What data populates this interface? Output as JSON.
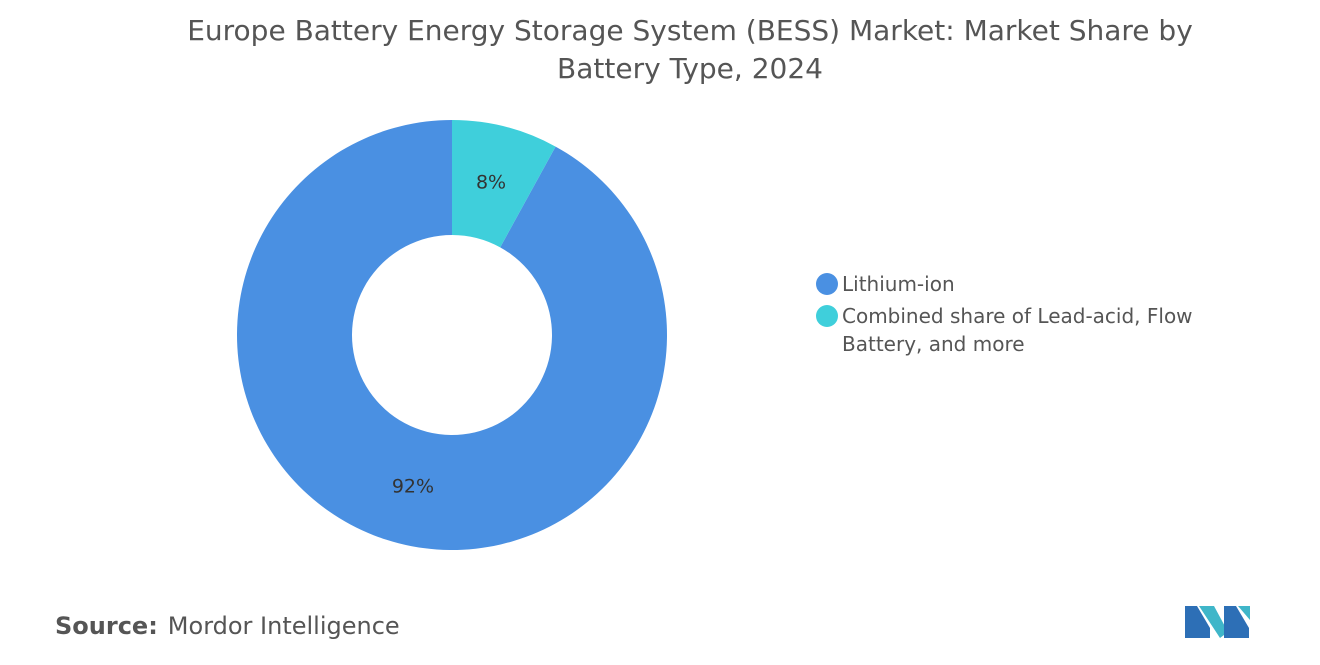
{
  "chart_data": {
    "type": "donut",
    "title": "Europe Battery Energy Storage System (BESS) Market: Market Share by Battery Type, 2024",
    "categories": [
      "Lithium-ion",
      "Combined share of Lead-acid, Flow Battery, and more"
    ],
    "values": [
      92,
      8
    ],
    "value_labels": [
      "92%",
      "8%"
    ],
    "colors": [
      "#4a90e2",
      "#3fcfdb"
    ]
  },
  "footer": {
    "label": "Source:",
    "text": "Mordor Intelligence"
  }
}
